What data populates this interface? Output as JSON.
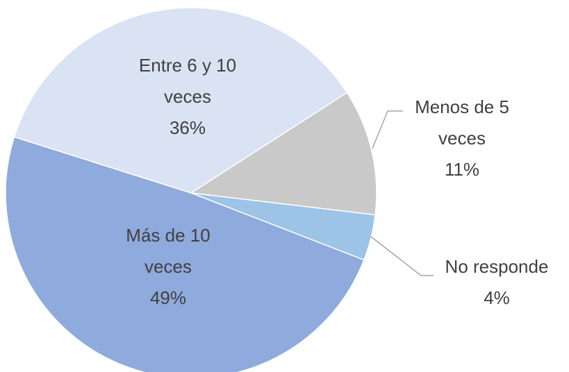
{
  "chart_data": {
    "type": "pie",
    "categories": [
      "Menos de 5 veces",
      "No responde",
      "Más de 10 veces",
      "Entre 6 y 10 veces"
    ],
    "values": [
      11,
      4,
      49,
      36
    ],
    "value_labels": [
      "11%",
      "4%",
      "49%",
      "36%"
    ],
    "colors": [
      "#c9c9c9",
      "#9dc3e6",
      "#8faadc",
      "#dae3f3"
    ]
  }
}
